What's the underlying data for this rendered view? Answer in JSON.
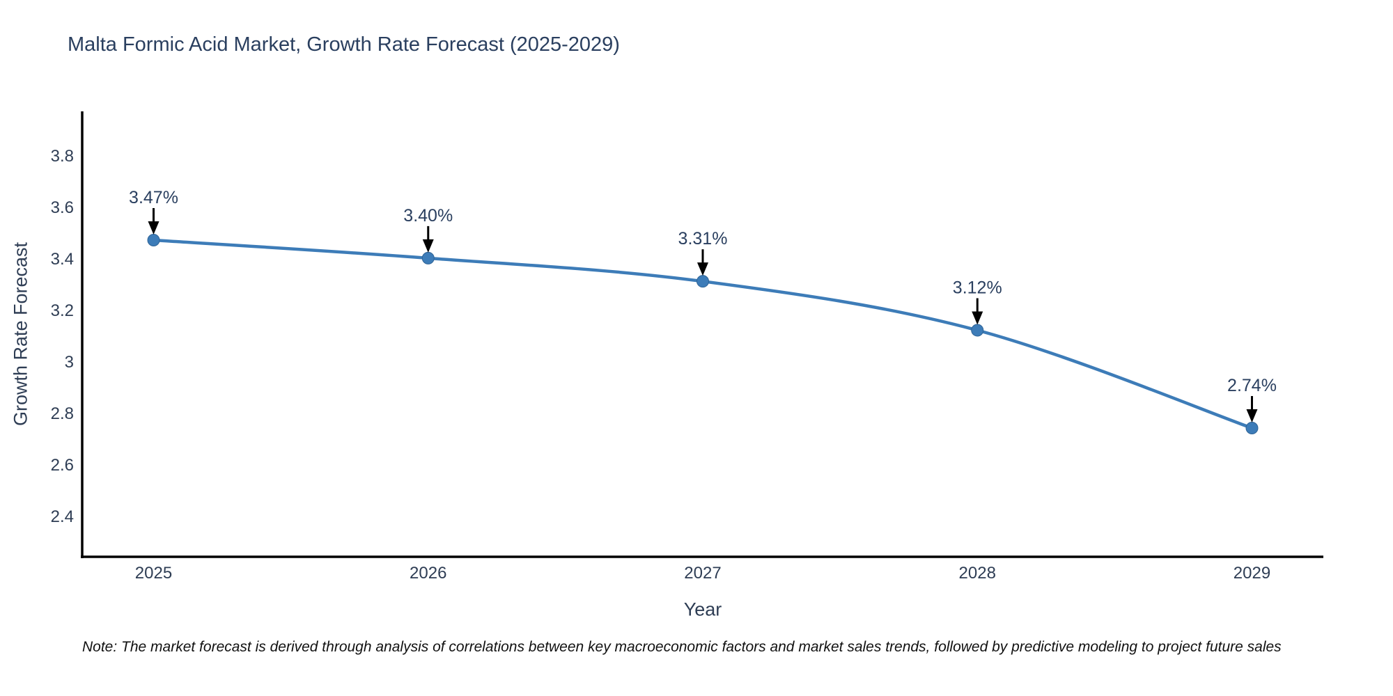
{
  "note": "Note: The market forecast is derived through analysis of correlations between key macroeconomic factors and market sales trends, followed by predictive modeling to project future sales",
  "chart_data": {
    "type": "line",
    "title": "Malta Formic Acid Market, Growth Rate Forecast (2025-2029)",
    "xlabel": "Year",
    "ylabel": "Growth Rate Forecast",
    "x": [
      2025,
      2026,
      2027,
      2028,
      2029
    ],
    "x_tick_labels": [
      "2025",
      "2026",
      "2027",
      "2028",
      "2029"
    ],
    "series": [
      {
        "name": "Growth Rate Forecast",
        "values": [
          3.47,
          3.4,
          3.31,
          3.12,
          2.74
        ]
      }
    ],
    "point_labels": [
      "3.47%",
      "3.40%",
      "3.31%",
      "3.12%",
      "2.74%"
    ],
    "yticks": [
      2.4,
      2.6,
      2.8,
      3,
      3.2,
      3.4,
      3.6,
      3.8
    ],
    "y_tick_labels": [
      "2.4",
      "2.6",
      "2.8",
      "3",
      "3.2",
      "3.4",
      "3.6",
      "3.8"
    ],
    "xlim": [
      2024.74,
      2029.26
    ],
    "ylim": [
      2.24,
      3.97
    ],
    "grid": false,
    "legend": "none",
    "line_shape": "spline",
    "annotations_have_arrows": true,
    "colors": {
      "line": "#3d7cb8",
      "marker": "#3d7cb8",
      "marker_edge": "#2e6396",
      "axis": "#000000",
      "tick_text": "#2e3d54",
      "title_text": "#2a3f5f",
      "annotation_text": "#2a3f5f",
      "arrow": "#000000"
    }
  }
}
